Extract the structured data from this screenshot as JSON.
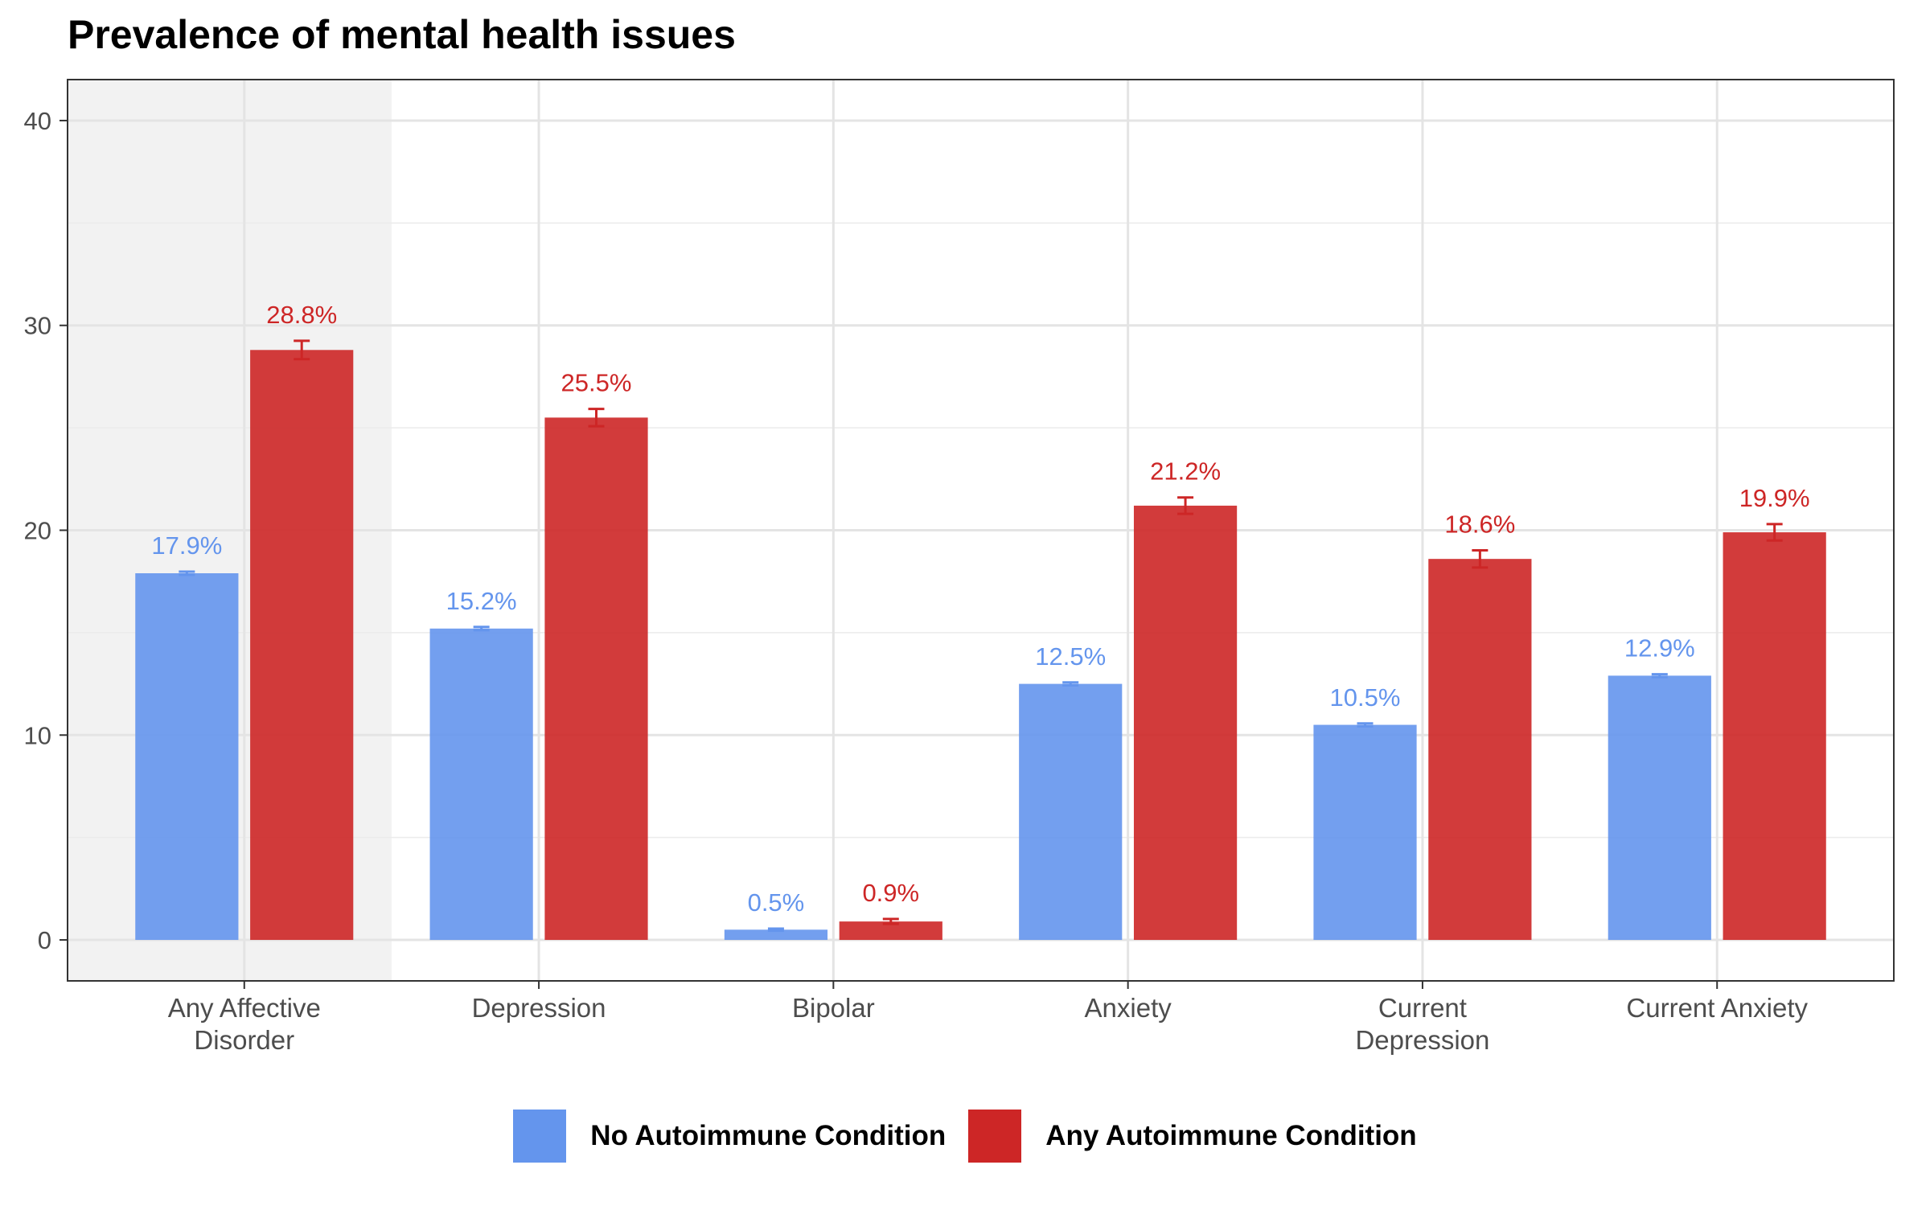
{
  "chart_data": {
    "type": "bar",
    "title": "Prevalence of mental health issues",
    "xlabel": "",
    "ylabel": "",
    "ylim": [
      -2,
      42
    ],
    "yticks": [
      0,
      10,
      20,
      30,
      40
    ],
    "grid": true,
    "legend_position": "bottom",
    "highlighted_category": "Any Affective Disorder",
    "categories": [
      "Any Affective Disorder",
      "Depression",
      "Bipolar",
      "Anxiety",
      "Current Depression",
      "Current Anxiety"
    ],
    "category_lines": [
      [
        "Any Affective",
        "Disorder"
      ],
      [
        "Depression"
      ],
      [
        "Bipolar"
      ],
      [
        "Anxiety"
      ],
      [
        "Current",
        "Depression"
      ],
      [
        "Current Anxiety"
      ]
    ],
    "series": [
      {
        "name": "No Autoimmune Condition",
        "color": "#6495ED",
        "values": [
          17.9,
          15.2,
          0.5,
          12.5,
          10.5,
          12.9
        ],
        "labels": [
          "17.9%",
          "15.2%",
          "0.5%",
          "12.5%",
          "10.5%",
          "12.9%"
        ],
        "error": [
          0.08,
          0.08,
          0.05,
          0.07,
          0.07,
          0.07
        ]
      },
      {
        "name": "Any Autoimmune Condition",
        "color": "#CD2626",
        "values": [
          28.8,
          25.5,
          0.9,
          21.2,
          18.6,
          19.9
        ],
        "labels": [
          "28.8%",
          "25.5%",
          "0.9%",
          "21.2%",
          "18.6%",
          "19.9%"
        ],
        "error": [
          0.45,
          0.42,
          0.12,
          0.4,
          0.42,
          0.4
        ]
      }
    ]
  }
}
